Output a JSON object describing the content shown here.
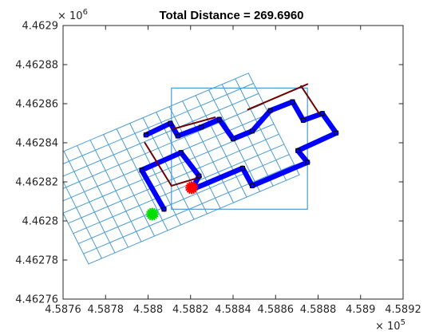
{
  "chart_data": {
    "type": "line",
    "title": "Total Distance = 269.6960",
    "xlabel": "",
    "ylabel": "",
    "xlim": [
      458760,
      458920
    ],
    "ylim": [
      4462760,
      4462900
    ],
    "x_ticks": [
      458760,
      458780,
      458800,
      458820,
      458840,
      458860,
      458880,
      458900,
      458920
    ],
    "x_tick_labels": [
      "4.5876",
      "4.5878",
      "4.588",
      "4.5882",
      "4.5884",
      "4.5886",
      "4.5888",
      "4.589",
      "4.5892"
    ],
    "x_exponent": {
      "base": "× 10",
      "power": "5"
    },
    "y_ticks": [
      4462760,
      4462780,
      4462800,
      4462820,
      4462840,
      4462860,
      4462880,
      4462900
    ],
    "y_tick_labels": [
      "4.46276",
      "4.46278",
      "4.4628",
      "4.46282",
      "4.46284",
      "4.46286",
      "4.46288",
      "4.4629"
    ],
    "y_exponent": {
      "base": "× 10",
      "power": "6"
    },
    "grid": false,
    "colors": {
      "grid_lines": "#4a9bd4",
      "boundary": "#4a9bd4",
      "route": "#0000ff",
      "transit": "#6e0000",
      "start": "#00dd00",
      "end": "#ff0000",
      "waypoint": "#000000",
      "axes": "#262626"
    },
    "series": [
      {
        "name": "rotated coverage grid",
        "kind": "grid",
        "origin": [
          458772.0,
          4462778.0
        ],
        "u_step": [
          6.2,
          2.85
        ],
        "v_step": [
          -2.4,
          5.2
        ],
        "u_cells": 16,
        "v_cells": 10
      },
      {
        "name": "field boundary",
        "kind": "rectangle",
        "x": [
          458811.0,
          458875.0
        ],
        "y": [
          4462806.0,
          4462868.0
        ]
      },
      {
        "name": "coverage route",
        "kind": "path",
        "x": [
          458807.5,
          458797.0,
          458815.5,
          458824.0,
          458820.5,
          458844.5,
          458849.0,
          458875.0,
          458870.5,
          458888.5,
          458882.0,
          458873.0,
          458868.0,
          458857.5,
          458849.0,
          458840.0,
          458833.5,
          458825.0,
          458814.0,
          458810.5,
          458799.0
        ],
        "y": [
          4462806.0,
          4462826.0,
          4462835.0,
          4462823.0,
          4462816.0,
          4462827.0,
          4462818.0,
          4462830.0,
          4462836.0,
          4462845.0,
          4462855.0,
          4462851.5,
          4462861.0,
          4462856.5,
          4462846.0,
          4462842.0,
          4462852.0,
          4462848.0,
          4462843.5,
          4462850.0,
          4462844.0
        ]
      },
      {
        "name": "transit links",
        "kind": "segments",
        "segments": [
          [
            [
              458798.5,
              4462840.0
            ],
            [
              458811.0,
              4462818.0
            ]
          ],
          [
            [
              458811.0,
              4462818.0
            ],
            [
              458825.0,
              4462822.5
            ]
          ],
          [
            [
              458811.5,
              4462847.0
            ],
            [
              458831.5,
              4462853.0
            ]
          ],
          [
            [
              458847.0,
              4462857.0
            ],
            [
              458875.0,
              4462870.0
            ]
          ],
          [
            [
              458872.0,
              4462869.0
            ],
            [
              458880.5,
              4462855.0
            ]
          ]
        ]
      },
      {
        "name": "waypoints",
        "kind": "markers",
        "points": [
          [
            458807.5,
            4462806.0
          ],
          [
            458797.0,
            4462826.0
          ],
          [
            458815.5,
            4462835.0
          ],
          [
            458824.0,
            4462823.0
          ],
          [
            458820.5,
            4462816.0
          ],
          [
            458844.5,
            4462827.0
          ],
          [
            458849.0,
            4462818.0
          ],
          [
            458875.0,
            4462830.0
          ],
          [
            458870.5,
            4462836.0
          ],
          [
            458888.5,
            4462845.0
          ],
          [
            458882.0,
            4462855.0
          ],
          [
            458873.0,
            4462851.5
          ],
          [
            458868.0,
            4462861.0
          ],
          [
            458857.5,
            4462856.5
          ],
          [
            458849.0,
            4462846.0
          ],
          [
            458840.0,
            4462842.0
          ],
          [
            458833.5,
            4462852.0
          ],
          [
            458825.0,
            4462848.0
          ],
          [
            458814.0,
            4462843.5
          ],
          [
            458810.5,
            4462850.0
          ],
          [
            458799.0,
            4462844.0
          ]
        ]
      },
      {
        "name": "start point",
        "kind": "start",
        "x": 458802.0,
        "y": 4462803.5
      },
      {
        "name": "end point",
        "kind": "end",
        "x": 458820.5,
        "y": 4462817.0
      }
    ]
  }
}
